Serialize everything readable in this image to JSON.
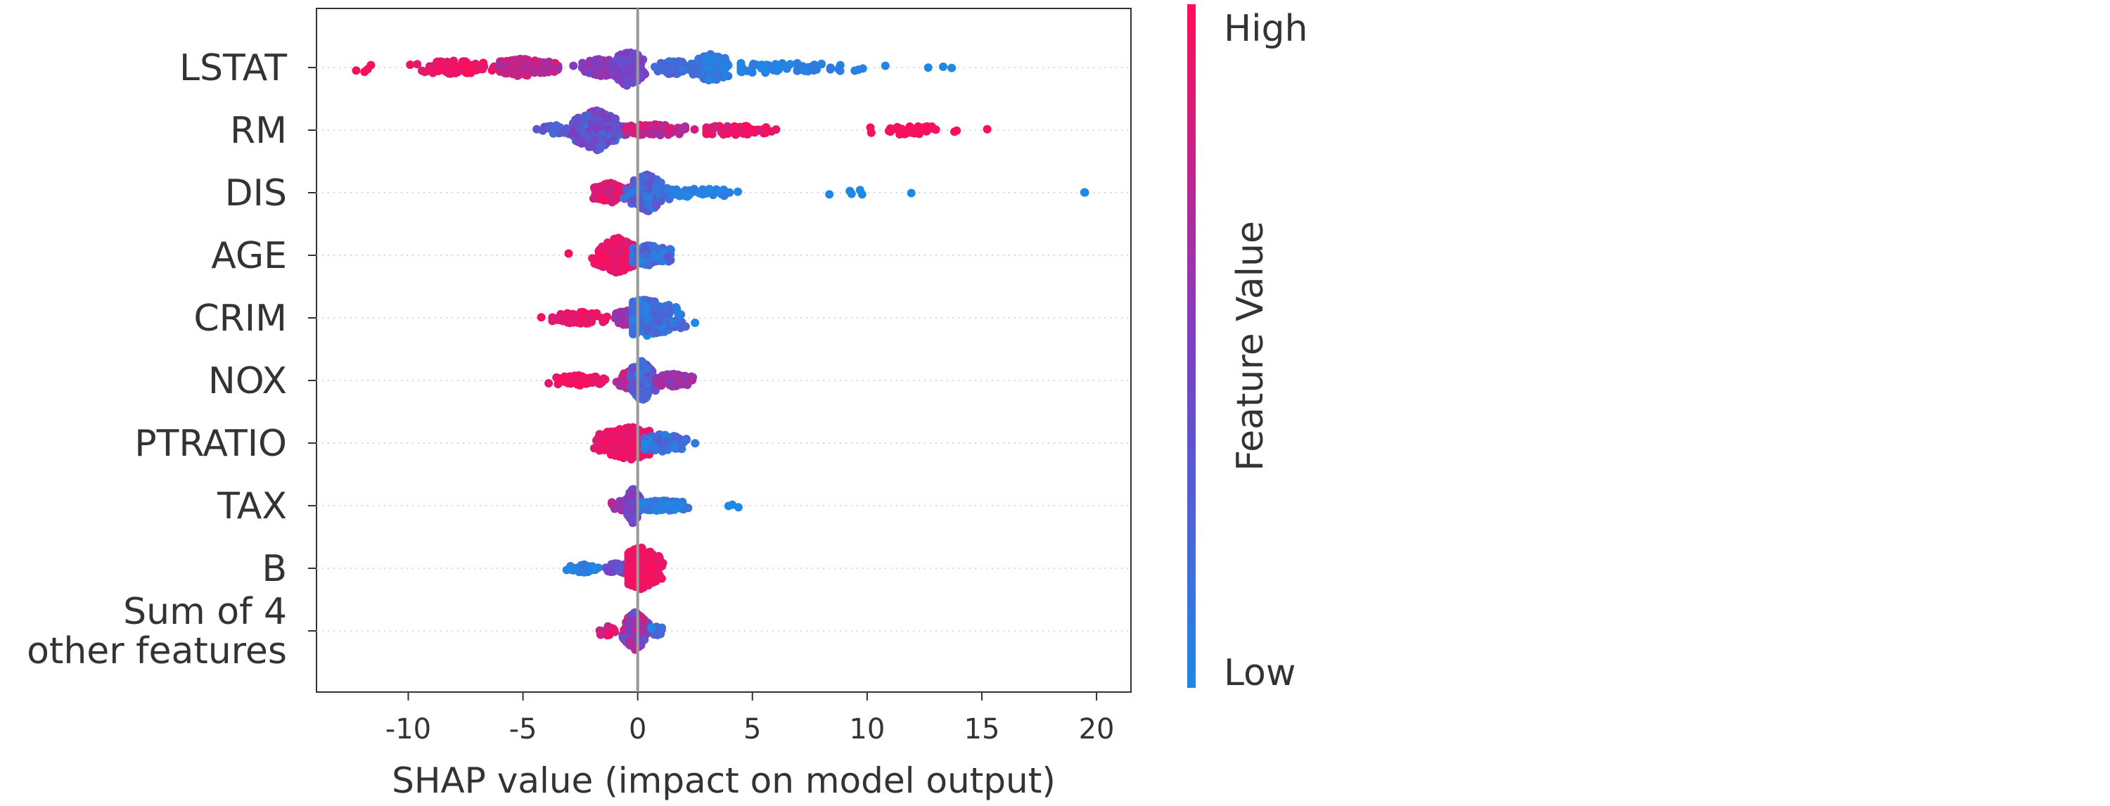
{
  "chart_data": {
    "type": "scatter",
    "subtype": "beeswarm",
    "xlabel": "SHAP value (impact on model output)",
    "xlim": [
      -14,
      21.5
    ],
    "xticks": [
      -10,
      -5,
      0,
      5,
      10,
      15,
      20
    ],
    "xtick_labels": [
      "-10",
      "-5",
      "0",
      "5",
      "10",
      "15",
      "20"
    ],
    "features": [
      "LSTAT",
      "RM",
      "DIS",
      "AGE",
      "CRIM",
      "NOX",
      "PTRATIO",
      "TAX",
      "B",
      "Sum of 4 other features"
    ],
    "feature_label_lines": [
      [
        "LSTAT"
      ],
      [
        "RM"
      ],
      [
        "DIS"
      ],
      [
        "AGE"
      ],
      [
        "CRIM"
      ],
      [
        "NOX"
      ],
      [
        "PTRATIO"
      ],
      [
        "TAX"
      ],
      [
        "B"
      ],
      [
        "Sum of 4",
        "other features"
      ]
    ],
    "zero_line": 0,
    "grid": "dotted horizontal row guides",
    "colorbar": {
      "title": "Feature Value",
      "high_label": "High",
      "low_label": "Low",
      "high_color": "#ff0d57",
      "mid_color": "#7b3fc4",
      "low_color": "#1e88e5"
    },
    "series": [
      {
        "feature": "LSTAT",
        "clusters": [
          {
            "min": -12.5,
            "max": -10.5,
            "center": -12,
            "n": 4,
            "width": 1.2,
            "color": [
              0.98,
              1
            ]
          },
          {
            "min": -10.5,
            "max": -6,
            "center": -8,
            "n": 120,
            "width": 2.2,
            "color": [
              0.85,
              1
            ]
          },
          {
            "min": -6,
            "max": -3,
            "center": -5,
            "n": 140,
            "width": 3.0,
            "color": [
              0.6,
              0.9
            ]
          },
          {
            "min": -3,
            "max": -0.5,
            "center": -1.5,
            "n": 110,
            "width": 3.0,
            "color": [
              0.45,
              0.65
            ]
          },
          {
            "min": -1.2,
            "max": 0.6,
            "center": -0.4,
            "n": 120,
            "width": 7.0,
            "color": [
              0.35,
              0.55
            ]
          },
          {
            "min": 0.5,
            "max": 2.5,
            "center": 1.5,
            "n": 80,
            "width": 2.5,
            "color": [
              0.1,
              0.35
            ]
          },
          {
            "min": 2.3,
            "max": 4.5,
            "center": 3.2,
            "n": 110,
            "width": 5.0,
            "color": [
              0.0,
              0.2
            ]
          },
          {
            "min": 4.5,
            "max": 11.8,
            "center": 6,
            "n": 70,
            "width": 1.6,
            "color": [
              0.0,
              0.1
            ]
          },
          {
            "min": 12.5,
            "max": 15.5,
            "center": 13.5,
            "n": 3,
            "width": 0.5,
            "color": [
              0.0,
              0.0
            ]
          }
        ]
      },
      {
        "feature": "RM",
        "clusters": [
          {
            "min": -4.6,
            "max": -3,
            "center": -3.5,
            "n": 30,
            "width": 1.5,
            "color": [
              0.2,
              0.4
            ]
          },
          {
            "min": -3.2,
            "max": -0.5,
            "center": -1.8,
            "n": 230,
            "width": 7.5,
            "color": [
              0.2,
              0.55
            ]
          },
          {
            "min": -0.5,
            "max": 3,
            "center": 0.5,
            "n": 100,
            "width": 1.8,
            "color": [
              0.65,
              0.9
            ]
          },
          {
            "min": 3,
            "max": 7,
            "center": 4,
            "n": 70,
            "width": 1.4,
            "color": [
              0.8,
              1
            ]
          },
          {
            "min": 9.6,
            "max": 14,
            "center": 12,
            "n": 38,
            "width": 1.4,
            "color": [
              0.95,
              1
            ]
          },
          {
            "min": 15.1,
            "max": 15.3,
            "center": 15.2,
            "n": 1,
            "width": 0.2,
            "color": [
              1,
              1
            ]
          }
        ]
      },
      {
        "feature": "DIS",
        "clusters": [
          {
            "min": -2.3,
            "max": -0.3,
            "center": -1.2,
            "n": 110,
            "width": 3.5,
            "color": [
              0.8,
              1
            ]
          },
          {
            "min": -0.6,
            "max": 1.5,
            "center": 0.4,
            "n": 200,
            "width": 7.0,
            "color": [
              0.05,
              0.4
            ]
          },
          {
            "min": 1.5,
            "max": 5,
            "center": 2.5,
            "n": 45,
            "width": 1.2,
            "color": [
              0,
              0.1
            ]
          },
          {
            "min": 7,
            "max": 13.5,
            "center": 10,
            "n": 6,
            "width": 0.5,
            "color": [
              0,
              0
            ]
          },
          {
            "min": 19.3,
            "max": 19.8,
            "center": 19.5,
            "n": 2,
            "width": 0.3,
            "color": [
              0,
              0
            ]
          }
        ]
      },
      {
        "feature": "AGE",
        "clusters": [
          {
            "min": -3.1,
            "max": -2.9,
            "center": -3,
            "n": 1,
            "width": 0.2,
            "color": [
              1,
              1
            ]
          },
          {
            "min": -2.2,
            "max": -0.2,
            "center": -0.9,
            "n": 230,
            "width": 6.5,
            "color": [
              0.85,
              1
            ]
          },
          {
            "min": -0.2,
            "max": 2,
            "center": 0.5,
            "n": 120,
            "width": 3.5,
            "color": [
              0.0,
              0.35
            ]
          }
        ]
      },
      {
        "feature": "CRIM",
        "clusters": [
          {
            "min": -4.6,
            "max": -1,
            "center": -2.5,
            "n": 90,
            "width": 1.8,
            "color": [
              0.85,
              1
            ]
          },
          {
            "min": -1.2,
            "max": 0,
            "center": -0.5,
            "n": 60,
            "width": 2.5,
            "color": [
              0.5,
              0.8
            ]
          },
          {
            "min": -0.2,
            "max": 2.8,
            "center": 0.3,
            "n": 230,
            "width": 7.0,
            "color": [
              0.0,
              0.3
            ]
          }
        ]
      },
      {
        "feature": "NOX",
        "clusters": [
          {
            "min": -4.2,
            "max": -1,
            "center": -2.5,
            "n": 70,
            "width": 1.5,
            "color": [
              0.85,
              1
            ]
          },
          {
            "min": -1,
            "max": 0,
            "center": -0.4,
            "n": 60,
            "width": 3.0,
            "color": [
              0.6,
              0.85
            ]
          },
          {
            "min": -0.3,
            "max": 1,
            "center": 0.2,
            "n": 160,
            "width": 7.5,
            "color": [
              0.1,
              0.45
            ]
          },
          {
            "min": 0.8,
            "max": 2.7,
            "center": 1.5,
            "n": 70,
            "width": 2.2,
            "color": [
              0.5,
              0.75
            ]
          }
        ]
      },
      {
        "feature": "PTRATIO",
        "clusters": [
          {
            "min": -2.4,
            "max": 0.5,
            "center": -0.3,
            "n": 230,
            "width": 6.0,
            "color": [
              0.85,
              1
            ]
          },
          {
            "min": 0.3,
            "max": 2.7,
            "center": 1,
            "n": 120,
            "width": 3.0,
            "color": [
              0.0,
              0.35
            ]
          }
        ]
      },
      {
        "feature": "TAX",
        "clusters": [
          {
            "min": -1.4,
            "max": -0.3,
            "center": -0.7,
            "n": 40,
            "width": 1.5,
            "color": [
              0.5,
              0.85
            ]
          },
          {
            "min": -0.5,
            "max": 0.2,
            "center": -0.2,
            "n": 180,
            "width": 6.5,
            "color": [
              0.35,
              0.6
            ]
          },
          {
            "min": 0.2,
            "max": 2.8,
            "center": 1,
            "n": 100,
            "width": 1.6,
            "color": [
              0.0,
              0.15
            ]
          },
          {
            "min": 3.8,
            "max": 5.4,
            "center": 4.5,
            "n": 3,
            "width": 0.3,
            "color": [
              0,
              0
            ]
          }
        ]
      },
      {
        "feature": "B",
        "clusters": [
          {
            "min": -3.3,
            "max": -1.5,
            "center": -2.4,
            "n": 45,
            "width": 1.2,
            "color": [
              0.0,
              0.15
            ]
          },
          {
            "min": -1.5,
            "max": -0.3,
            "center": -0.8,
            "n": 40,
            "width": 1.8,
            "color": [
              0.3,
              0.6
            ]
          },
          {
            "min": -0.4,
            "max": 1.4,
            "center": 0.1,
            "n": 260,
            "width": 8.0,
            "color": [
              0.9,
              1
            ]
          }
        ]
      },
      {
        "feature": "Sum of 4 other features",
        "clusters": [
          {
            "min": -2,
            "max": -0.7,
            "center": -1.3,
            "n": 30,
            "width": 1.5,
            "color": [
              0.65,
              1
            ]
          },
          {
            "min": -0.8,
            "max": 0.6,
            "center": -0.1,
            "n": 230,
            "width": 7.0,
            "color": [
              0.3,
              0.85
            ]
          },
          {
            "min": 0.6,
            "max": 1.3,
            "center": 0.8,
            "n": 25,
            "width": 1.5,
            "color": [
              0.0,
              0.4
            ]
          }
        ]
      }
    ]
  }
}
